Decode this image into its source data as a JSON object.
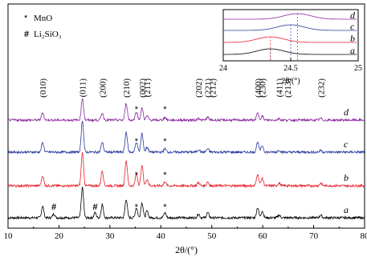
{
  "chart_data": {
    "type": "line",
    "xlabel": "2θ/(°)",
    "xlim": [
      10,
      80
    ],
    "xticks": [
      10,
      20,
      30,
      40,
      50,
      60,
      70,
      80
    ],
    "legend": [
      {
        "symbol": "*",
        "text": "MnO"
      },
      {
        "symbol": "#",
        "text": "Li₂SiO₃"
      }
    ],
    "peak_labels": [
      {
        "text": "(010)",
        "x": 16.8
      },
      {
        "text": "(011)",
        "x": 24.6
      },
      {
        "text": "(200)",
        "x": 28.5
      },
      {
        "text": "(210)",
        "x": 33.2
      },
      {
        "text": "(002)",
        "x": 36.3
      },
      {
        "text": "(211)",
        "x": 37.3
      },
      {
        "text": "(202)",
        "x": 47.4
      },
      {
        "text": "(221)",
        "x": 49.2
      },
      {
        "text": "(212)",
        "x": 50.1
      },
      {
        "text": "(400)",
        "x": 59.0
      },
      {
        "text": "(230)",
        "x": 59.9
      },
      {
        "text": "(411)",
        "x": 63.2
      },
      {
        "text": "(213)",
        "x": 64.9
      },
      {
        "text": "(232)",
        "x": 71.4
      }
    ],
    "series": [
      {
        "name": "a",
        "color": "#000000",
        "peaks": [
          [
            16.8,
            0.35
          ],
          [
            19.0,
            0.12
          ],
          [
            24.6,
            0.9
          ],
          [
            27.1,
            0.15
          ],
          [
            28.5,
            0.4
          ],
          [
            33.2,
            0.55
          ],
          [
            35.2,
            0.3
          ],
          [
            36.3,
            0.45
          ],
          [
            37.3,
            0.2
          ],
          [
            40.8,
            0.15
          ],
          [
            47.4,
            0.12
          ],
          [
            49.2,
            0.15
          ],
          [
            59.0,
            0.3
          ],
          [
            59.9,
            0.2
          ],
          [
            63.2,
            0.08
          ],
          [
            71.4,
            0.08
          ]
        ]
      },
      {
        "name": "b",
        "color": "#e8202a",
        "peaks": [
          [
            16.8,
            0.3
          ],
          [
            24.6,
            1.0
          ],
          [
            28.5,
            0.45
          ],
          [
            33.2,
            0.75
          ],
          [
            35.2,
            0.35
          ],
          [
            36.3,
            0.6
          ],
          [
            37.3,
            0.2
          ],
          [
            40.8,
            0.12
          ],
          [
            47.4,
            0.1
          ],
          [
            49.2,
            0.12
          ],
          [
            59.0,
            0.35
          ],
          [
            59.9,
            0.22
          ],
          [
            63.2,
            0.08
          ],
          [
            71.4,
            0.08
          ]
        ]
      },
      {
        "name": "c",
        "color": "#2a3a9c",
        "peaks": [
          [
            16.8,
            0.28
          ],
          [
            24.6,
            0.95
          ],
          [
            28.5,
            0.3
          ],
          [
            33.2,
            0.6
          ],
          [
            35.2,
            0.3
          ],
          [
            36.3,
            0.55
          ],
          [
            37.3,
            0.15
          ],
          [
            40.8,
            0.1
          ],
          [
            47.4,
            0.08
          ],
          [
            49.2,
            0.1
          ],
          [
            59.0,
            0.3
          ],
          [
            59.9,
            0.2
          ],
          [
            63.2,
            0.06
          ],
          [
            71.4,
            0.06
          ]
        ]
      },
      {
        "name": "d",
        "color": "#8a2a9c",
        "peaks": [
          [
            16.8,
            0.22
          ],
          [
            24.6,
            0.65
          ],
          [
            28.5,
            0.22
          ],
          [
            33.2,
            0.5
          ],
          [
            35.2,
            0.25
          ],
          [
            36.3,
            0.35
          ],
          [
            37.3,
            0.12
          ],
          [
            40.8,
            0.08
          ],
          [
            47.4,
            0.06
          ],
          [
            49.2,
            0.08
          ],
          [
            59.0,
            0.2
          ],
          [
            59.9,
            0.12
          ],
          [
            63.2,
            0.05
          ],
          [
            71.4,
            0.05
          ]
        ]
      }
    ],
    "series_markers": [
      {
        "series": "a",
        "symbol": "#",
        "x": 19.0
      },
      {
        "series": "a",
        "symbol": "#",
        "x": 27.1
      },
      {
        "series": "a",
        "symbol": "*",
        "x": 35.2
      },
      {
        "series": "a",
        "symbol": "*",
        "x": 40.8
      },
      {
        "series": "b",
        "symbol": "*",
        "x": 35.2
      },
      {
        "series": "b",
        "symbol": "*",
        "x": 40.8
      },
      {
        "series": "c",
        "symbol": "*",
        "x": 35.2
      },
      {
        "series": "c",
        "symbol": "*",
        "x": 40.8
      },
      {
        "series": "d",
        "symbol": "*",
        "x": 35.2
      },
      {
        "series": "d",
        "symbol": "*",
        "x": 40.8
      }
    ],
    "inset": {
      "xlabel": "2θ/(°)",
      "xlim": [
        24,
        25
      ],
      "xticks": [
        24,
        24.5,
        25
      ],
      "series": [
        {
          "name": "a",
          "color": "#000000",
          "peak": 24.35
        },
        {
          "name": "b",
          "color": "#e8202a",
          "peak": 24.35
        },
        {
          "name": "c",
          "color": "#2a3a9c",
          "peak": 24.5
        },
        {
          "name": "d",
          "color": "#8a2a9c",
          "peak": 24.55
        }
      ]
    }
  }
}
